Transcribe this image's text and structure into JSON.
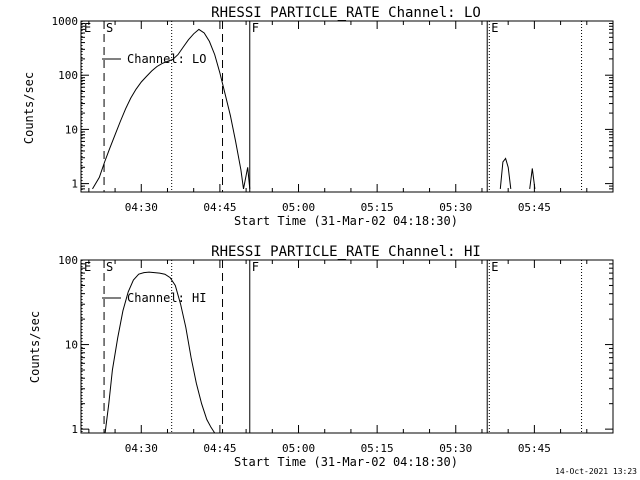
{
  "timestamp": "14-Oct-2021 13:23",
  "chart_data": [
    {
      "type": "line",
      "title": "RHESSI PARTICLE_RATE Channel: LO",
      "xlabel": "Start Time (31-Mar-02 04:18:30)",
      "ylabel": "Counts/sec",
      "legend": "Channel: LO",
      "ylog": true,
      "ylim": [
        0.7,
        1000
      ],
      "xlim_minutes": [
        0,
        101.5
      ],
      "x_tick_labels": [
        "04:30",
        "04:45",
        "05:00",
        "05:15",
        "05:30",
        "05:45"
      ],
      "x_ticks_minutes": [
        11.5,
        26.5,
        41.5,
        56.5,
        71.5,
        86.5
      ],
      "y_tick_labels": [
        "1",
        "10",
        "100",
        "1000"
      ],
      "y_ticks": [
        1,
        10,
        100,
        1000
      ],
      "markers": [
        {
          "label": "E",
          "x": 0.2,
          "style": "dotted"
        },
        {
          "label": "S",
          "x": 4.4,
          "style": "dashed"
        },
        {
          "label": "",
          "x": 17.3,
          "style": "dotted"
        },
        {
          "label": "",
          "x": 27.0,
          "style": "dashed"
        },
        {
          "label": "F",
          "x": 32.2,
          "style": "solid"
        },
        {
          "label": "",
          "x": 77.5,
          "style": "solid"
        },
        {
          "label": "E",
          "x": 77.9,
          "style": "dotted"
        },
        {
          "label": "",
          "x": 95.5,
          "style": "dotted"
        }
      ],
      "segments": [
        {
          "x": [
            2.2,
            3.5,
            4.5,
            5.5,
            6.5,
            7.5,
            8.5,
            9.5,
            10.5,
            11.5,
            12.5,
            13.5,
            14.5,
            15.5,
            16.5,
            17.5,
            18.5,
            19.5,
            20.5,
            21.5,
            22.5,
            23.5,
            24.5,
            25.5,
            26.5,
            27.5,
            28.5,
            29.5,
            30.5,
            31.0,
            31.8,
            32.2
          ],
          "y": [
            0.8,
            1.3,
            2.5,
            4.5,
            8,
            14,
            24,
            38,
            55,
            75,
            95,
            120,
            145,
            165,
            180,
            195,
            240,
            330,
            450,
            580,
            700,
            600,
            420,
            240,
            110,
            45,
            18,
            6,
            1.8,
            0.8,
            2,
            0.8
          ]
        },
        {
          "x": [
            80.0,
            80.5,
            81.0,
            81.5,
            82.0
          ],
          "y": [
            0.8,
            2.5,
            2.9,
            2.0,
            0.8
          ]
        },
        {
          "x": [
            85.6,
            86.1,
            86.6
          ],
          "y": [
            0.8,
            1.9,
            0.8
          ]
        }
      ]
    },
    {
      "type": "line",
      "title": "RHESSI PARTICLE_RATE Channel: HI",
      "xlabel": "Start Time (31-Mar-02 04:18:30)",
      "ylabel": "Counts/sec",
      "legend": "Channel: HI",
      "ylog": true,
      "ylim": [
        0.9,
        100
      ],
      "xlim_minutes": [
        0,
        101.5
      ],
      "x_tick_labels": [
        "04:30",
        "04:45",
        "05:00",
        "05:15",
        "05:30",
        "05:45"
      ],
      "x_ticks_minutes": [
        11.5,
        26.5,
        41.5,
        56.5,
        71.5,
        86.5
      ],
      "y_tick_labels": [
        "1",
        "10",
        "100"
      ],
      "y_ticks": [
        1,
        10,
        100
      ],
      "markers": [
        {
          "label": "E",
          "x": 0.2,
          "style": "dotted"
        },
        {
          "label": "S",
          "x": 4.4,
          "style": "dashed"
        },
        {
          "label": "",
          "x": 17.3,
          "style": "dotted"
        },
        {
          "label": "",
          "x": 27.0,
          "style": "dashed"
        },
        {
          "label": "F",
          "x": 32.2,
          "style": "solid"
        },
        {
          "label": "",
          "x": 77.5,
          "style": "solid"
        },
        {
          "label": "E",
          "x": 77.9,
          "style": "dotted"
        },
        {
          "label": "",
          "x": 95.5,
          "style": "dotted"
        }
      ],
      "segments": [
        {
          "x": [
            4.6,
            5.3,
            6.0,
            7.0,
            8.0,
            9.0,
            10.0,
            11.0,
            12.0,
            13.0,
            14.0,
            15.0,
            16.0,
            17.0,
            18.0,
            19.0,
            20.0,
            21.0,
            22.0,
            23.0,
            24.0,
            24.8,
            25.5
          ],
          "y": [
            0.9,
            2,
            5,
            12,
            25,
            42,
            58,
            68,
            71,
            72,
            71,
            70,
            68,
            62,
            50,
            30,
            16,
            7,
            3.5,
            2,
            1.3,
            1.05,
            0.9
          ]
        }
      ]
    }
  ]
}
